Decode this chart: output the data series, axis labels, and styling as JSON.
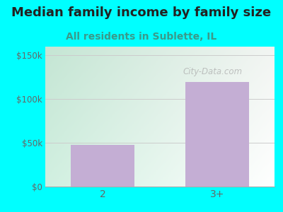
{
  "title": "Median family income by family size",
  "subtitle": "All residents in Sublette, IL",
  "categories": [
    "2",
    "3+"
  ],
  "values": [
    48000,
    120000
  ],
  "bar_color": "#c4aed4",
  "figure_bg_color": "#00ffff",
  "title_color": "#222222",
  "subtitle_color": "#3a9a8a",
  "tick_label_color": "#666666",
  "yticks": [
    0,
    50000,
    100000,
    150000
  ],
  "ytick_labels": [
    "$0",
    "$50k",
    "$100k",
    "$150k"
  ],
  "ylim": [
    0,
    160000
  ],
  "title_fontsize": 13,
  "subtitle_fontsize": 10,
  "watermark": "City-Data.com",
  "plot_grad_left": "#cceedd",
  "plot_grad_right": "#f0f8f0",
  "grid_color": "#cccccc"
}
